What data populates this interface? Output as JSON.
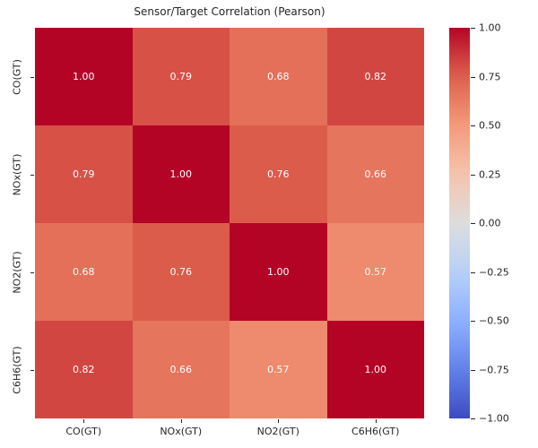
{
  "chart_data": {
    "type": "heatmap",
    "title": "Sensor/Target Correlation (Pearson)",
    "x_labels": [
      "CO(GT)",
      "NOx(GT)",
      "NO2(GT)",
      "C6H6(GT)"
    ],
    "y_labels": [
      "CO(GT)",
      "NOx(GT)",
      "NO2(GT)",
      "C6H6(GT)"
    ],
    "matrix": [
      [
        1.0,
        0.79,
        0.68,
        0.82
      ],
      [
        0.79,
        1.0,
        0.76,
        0.66
      ],
      [
        0.68,
        0.76,
        1.0,
        0.57
      ],
      [
        0.82,
        0.66,
        0.57,
        1.0
      ]
    ],
    "value_decimals": 2,
    "vmin": -1.0,
    "vmax": 1.0,
    "colormap": "coolwarm",
    "colormap_colors": {
      "min": "#3b4cc0",
      "mid": "#dddddd",
      "max": "#b40426"
    },
    "annotation_color": "#ffffff",
    "text_color": "#262626",
    "background_color": "#ffffff",
    "grid": false,
    "legend_position": "colorbar-right",
    "colorbar": {
      "ticks": [
        1.0,
        0.75,
        0.5,
        0.25,
        0.0,
        -0.25,
        -0.5,
        -0.75,
        -1.0
      ],
      "tick_labels": [
        "1.00",
        "0.75",
        "0.50",
        "0.25",
        "0.00",
        "−0.25",
        "−0.50",
        "−0.75",
        "−1.00"
      ]
    }
  }
}
